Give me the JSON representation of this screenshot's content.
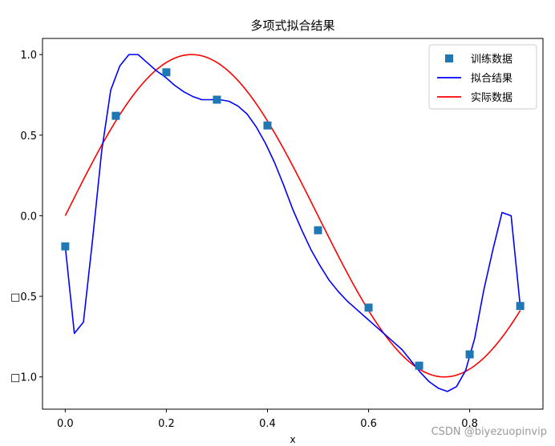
{
  "chart_data": {
    "type": "line",
    "title": "多项式拟合结果",
    "xlabel": "x",
    "ylabel": "",
    "xlim": [
      -0.045,
      0.945
    ],
    "ylim": [
      -1.2,
      1.1
    ],
    "xticks": [
      0.0,
      0.2,
      0.4,
      0.6,
      0.8
    ],
    "xtick_labels": [
      "0.0",
      "0.2",
      "0.4",
      "0.6",
      "0.8"
    ],
    "yticks": [
      1.0,
      0.5,
      0.0,
      -0.5,
      -1.0
    ],
    "ytick_labels": [
      "1.0",
      "0.5",
      "0.0",
      "□0.5",
      "□1.0"
    ],
    "grid": false,
    "legend_position": "top-right",
    "series": [
      {
        "name": "训练数据",
        "kind": "scatter",
        "marker": "square",
        "color": "#1f77b4",
        "x": [
          0.0,
          0.1,
          0.2,
          0.3,
          0.4,
          0.5,
          0.6,
          0.7,
          0.8,
          0.9
        ],
        "y": [
          -0.19,
          0.62,
          0.89,
          0.72,
          0.56,
          -0.09,
          -0.57,
          -0.93,
          -0.86,
          -0.56
        ]
      },
      {
        "name": "拟合结果",
        "kind": "line",
        "color": "#0000ff",
        "x": [
          0.0,
          0.018,
          0.036,
          0.054,
          0.072,
          0.09,
          0.108,
          0.126,
          0.144,
          0.162,
          0.18,
          0.198,
          0.216,
          0.234,
          0.252,
          0.27,
          0.288,
          0.306,
          0.324,
          0.342,
          0.36,
          0.378,
          0.396,
          0.414,
          0.432,
          0.45,
          0.468,
          0.486,
          0.504,
          0.522,
          0.54,
          0.558,
          0.576,
          0.594,
          0.612,
          0.63,
          0.648,
          0.666,
          0.684,
          0.702,
          0.72,
          0.738,
          0.756,
          0.774,
          0.792,
          0.81,
          0.828,
          0.846,
          0.864,
          0.882,
          0.9
        ],
        "y": [
          -0.19,
          -0.73,
          -0.66,
          -0.15,
          0.4,
          0.78,
          0.93,
          1.0,
          1.0,
          0.95,
          0.9,
          0.86,
          0.81,
          0.77,
          0.74,
          0.72,
          0.72,
          0.72,
          0.71,
          0.68,
          0.63,
          0.55,
          0.45,
          0.33,
          0.19,
          0.04,
          -0.09,
          -0.21,
          -0.31,
          -0.4,
          -0.47,
          -0.53,
          -0.58,
          -0.63,
          -0.68,
          -0.73,
          -0.78,
          -0.83,
          -0.9,
          -0.97,
          -1.03,
          -1.07,
          -1.09,
          -1.06,
          -0.96,
          -0.76,
          -0.46,
          -0.21,
          0.02,
          0.0,
          -0.56
        ]
      },
      {
        "name": "实际数据",
        "kind": "line",
        "color": "#ff0000",
        "function": "sin(2*pi*x)",
        "x_range": [
          0.0,
          0.9
        ]
      }
    ]
  },
  "watermark": "CSDN @biyezuopinvip"
}
